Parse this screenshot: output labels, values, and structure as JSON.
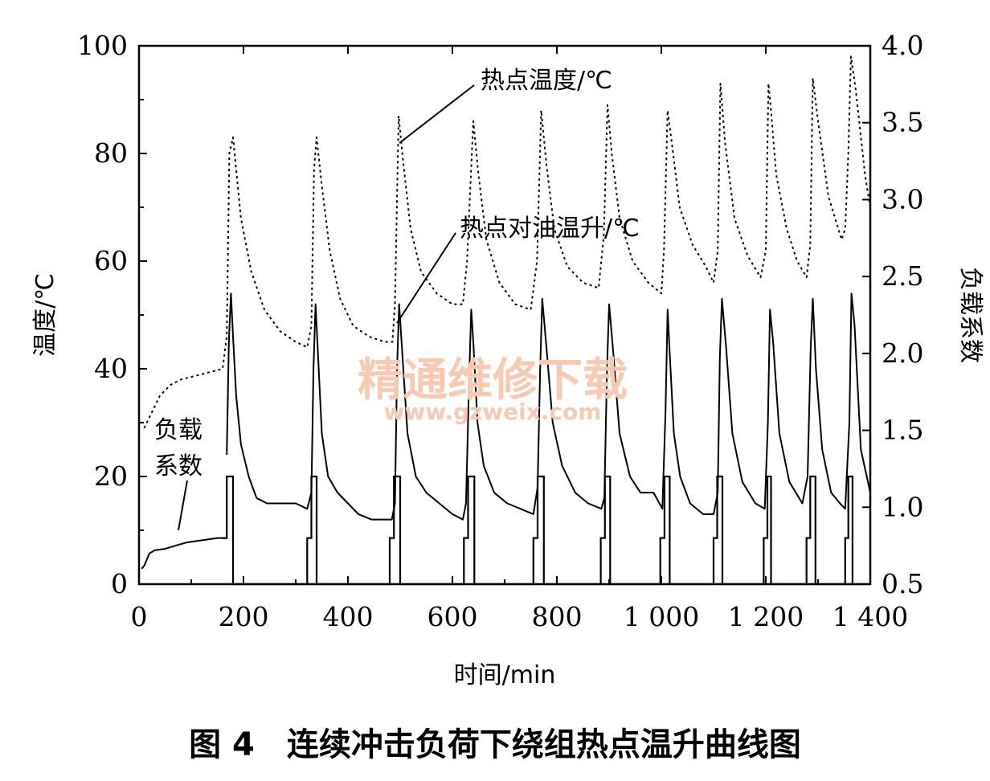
{
  "chart_data": {
    "type": "line",
    "title": "",
    "caption": "图 4　连续冲击负荷下绕组热点温升曲线图",
    "xlabel": "时间/min",
    "ylabel_left": "温度/℃",
    "ylabel_right": "负载系数",
    "xlim": [
      0,
      1400
    ],
    "ylim_left": [
      0,
      100
    ],
    "ylim_right": [
      0.5,
      4.0
    ],
    "x_ticks": [
      0,
      200,
      400,
      600,
      800,
      1000,
      1200,
      1400
    ],
    "x_tick_labels": [
      "0",
      "200",
      "400",
      "600",
      "800",
      "1 000",
      "1 200",
      "1 400"
    ],
    "y_left_ticks": [
      0,
      20,
      40,
      60,
      80,
      100
    ],
    "y_left_tick_labels": [
      "0",
      "20",
      "40",
      "60",
      "80",
      "100"
    ],
    "y_right_ticks": [
      0.5,
      1.0,
      1.5,
      2.0,
      2.5,
      3.0,
      3.5,
      4.0
    ],
    "y_right_tick_labels": [
      "0.5",
      "1.0",
      "1.5",
      "2.0",
      "2.5",
      "3.0",
      "3.5",
      "4.0"
    ],
    "annotations": [
      {
        "text": "热点温度/℃",
        "series": "hotspot_temperature"
      },
      {
        "text": "热点对油温升/℃",
        "series": "hotspot_rise"
      },
      {
        "text": "负载",
        "series": "load_factor"
      },
      {
        "text": "系数",
        "series": "load_factor"
      }
    ],
    "watermark": {
      "title": "精通维修下载",
      "url": "www.gzweix.com"
    },
    "series": [
      {
        "name": "热点温度/℃",
        "key": "hotspot_temperature",
        "axis": "left",
        "style": "dotted",
        "x": [
          10,
          20,
          40,
          60,
          80,
          100,
          120,
          140,
          160,
          168,
          173,
          180,
          195,
          215,
          240,
          270,
          300,
          322,
          330,
          335,
          340,
          350,
          365,
          385,
          410,
          440,
          470,
          485,
          490,
          497,
          505,
          520,
          540,
          570,
          600,
          620,
          628,
          640,
          650,
          665,
          690,
          720,
          750,
          762,
          770,
          780,
          795,
          820,
          850,
          880,
          890,
          897,
          905,
          920,
          945,
          975,
          1000,
          1005,
          1012,
          1020,
          1035,
          1060,
          1085,
          1100,
          1108,
          1113,
          1122,
          1140,
          1165,
          1190,
          1200,
          1205,
          1210,
          1220,
          1240,
          1260,
          1278,
          1285,
          1290,
          1300,
          1320,
          1345,
          1352,
          1358,
          1363,
          1372,
          1390,
          1400
        ],
        "y": [
          29,
          31,
          35,
          37,
          38,
          38.5,
          39,
          39.5,
          40,
          46,
          80,
          83,
          68,
          58,
          51,
          47,
          45,
          44,
          48,
          77,
          83,
          74,
          62,
          53,
          48,
          46,
          45,
          45,
          52,
          87,
          79,
          66,
          58,
          54,
          52,
          52,
          60,
          86,
          76,
          64,
          56,
          52,
          51,
          60,
          88,
          78,
          66,
          59,
          56,
          55,
          65,
          89,
          80,
          68,
          60,
          56,
          54,
          62,
          88,
          82,
          70,
          63,
          59,
          56,
          62,
          93,
          82,
          68,
          61,
          57,
          62,
          93,
          88,
          76,
          66,
          60,
          57,
          63,
          94,
          86,
          72,
          64,
          66,
          80,
          98,
          92,
          76,
          70
        ]
      },
      {
        "name": "热点对油温升/℃",
        "key": "hotspot_rise",
        "axis": "left",
        "style": "solid",
        "x": [
          168,
          172,
          176,
          180,
          186,
          195,
          210,
          225,
          245,
          270,
          300,
          322,
          330,
          334,
          338,
          342,
          350,
          362,
          380,
          400,
          420,
          445,
          470,
          484,
          490,
          494,
          498,
          504,
          514,
          530,
          550,
          575,
          600,
          620,
          626,
          632,
          636,
          640,
          648,
          660,
          680,
          705,
          730,
          755,
          763,
          768,
          772,
          780,
          792,
          810,
          835,
          860,
          885,
          891,
          896,
          900,
          908,
          920,
          940,
          960,
          985,
          1002,
          1008,
          1012,
          1016,
          1024,
          1036,
          1055,
          1080,
          1100,
          1108,
          1112,
          1116,
          1124,
          1136,
          1155,
          1180,
          1198,
          1204,
          1208,
          1214,
          1226,
          1245,
          1270,
          1280,
          1286,
          1290,
          1296,
          1308,
          1325,
          1342,
          1352,
          1360,
          1364,
          1370,
          1382,
          1400
        ],
        "y": [
          24,
          45,
          54,
          46,
          35,
          26,
          20,
          16,
          15,
          15,
          15,
          14,
          17,
          40,
          52,
          44,
          28,
          20,
          17,
          15,
          13,
          12,
          12,
          12,
          15,
          40,
          52,
          43,
          28,
          20,
          17,
          15,
          13,
          12,
          15,
          38,
          51,
          45,
          30,
          22,
          17,
          15,
          14,
          13,
          18,
          40,
          53,
          44,
          30,
          22,
          17,
          15,
          14,
          16,
          40,
          52,
          43,
          28,
          20,
          17,
          17,
          14,
          32,
          51,
          43,
          28,
          20,
          15,
          13,
          13,
          17,
          42,
          53,
          44,
          28,
          19,
          15,
          14,
          30,
          51,
          45,
          28,
          19,
          15,
          20,
          44,
          53,
          40,
          25,
          17,
          15,
          14,
          30,
          54,
          48,
          25,
          17
        ]
      },
      {
        "name": "负载系数",
        "key": "load_factor",
        "axis": "right",
        "style": "solid",
        "x": [
          5,
          10,
          20,
          30,
          50,
          70,
          90,
          110,
          130,
          150,
          168
        ],
        "y": [
          0.6,
          0.62,
          0.7,
          0.72,
          0.73,
          0.75,
          0.77,
          0.78,
          0.79,
          0.8,
          0.8
        ]
      }
    ],
    "load_pulses": {
      "base": 0.5,
      "low_step": 0.8,
      "peak": 1.2,
      "segments": [
        {
          "step_start": 160,
          "peak_start": 168,
          "peak_end": 180
        },
        {
          "step_start": 322,
          "peak_start": 330,
          "peak_end": 340
        },
        {
          "step_start": 480,
          "peak_start": 488,
          "peak_end": 500
        },
        {
          "step_start": 622,
          "peak_start": 630,
          "peak_end": 642
        },
        {
          "step_start": 755,
          "peak_start": 763,
          "peak_end": 775
        },
        {
          "step_start": 884,
          "peak_start": 892,
          "peak_end": 902
        },
        {
          "step_start": 998,
          "peak_start": 1006,
          "peak_end": 1016
        },
        {
          "step_start": 1100,
          "peak_start": 1107,
          "peak_end": 1117
        },
        {
          "step_start": 1196,
          "peak_start": 1203,
          "peak_end": 1210
        },
        {
          "step_start": 1278,
          "peak_start": 1285,
          "peak_end": 1295
        },
        {
          "step_start": 1352,
          "peak_start": 1358,
          "peak_end": 1366
        }
      ]
    }
  }
}
